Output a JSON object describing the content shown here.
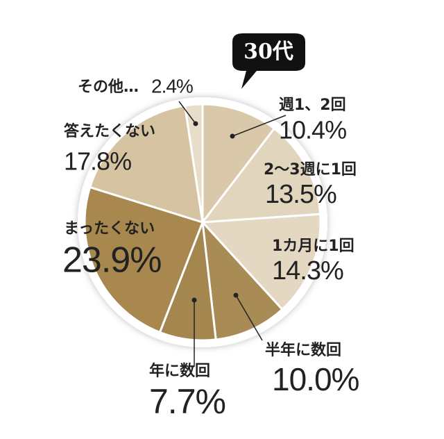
{
  "chart_data": {
    "type": "pie",
    "title": "30代",
    "categories": [
      "週1、2回",
      "2〜3週に1回",
      "1カ月に1回",
      "半年に数回",
      "年に数回",
      "まったくない",
      "答えたくない",
      "その他…"
    ],
    "values": [
      10.4,
      13.5,
      14.3,
      10.0,
      7.7,
      23.9,
      17.8,
      2.4
    ],
    "value_labels": [
      "10.4%",
      "13.5%",
      "14.3%",
      "10.0%",
      "7.7%",
      "23.9%",
      "17.8%",
      "2.4%"
    ],
    "colors": [
      "#d9c9aa",
      "#e2d5bd",
      "#e4d8c3",
      "#a98b56",
      "#a4864f",
      "#a8884f",
      "#d5c3a2",
      "#e8ddc9"
    ]
  }
}
